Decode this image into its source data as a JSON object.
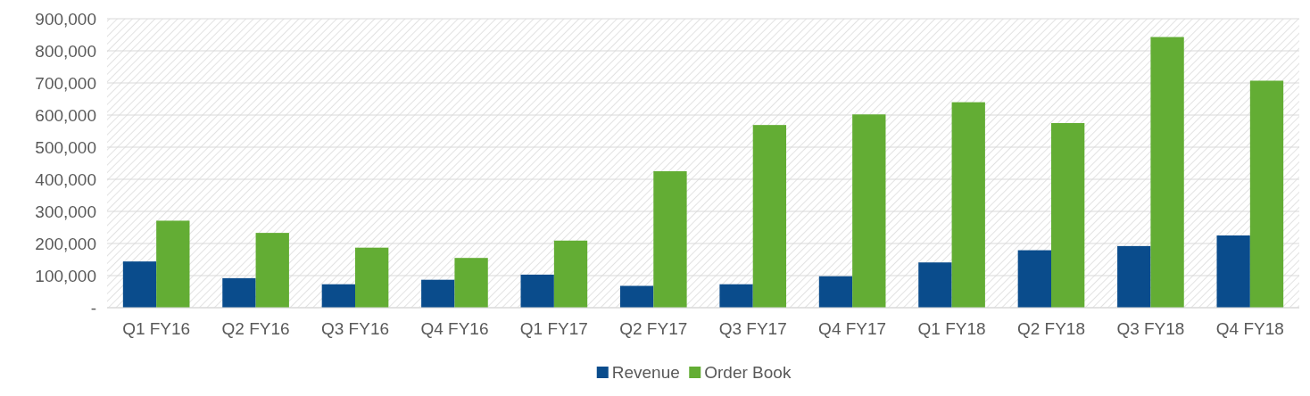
{
  "chart_data": {
    "type": "bar",
    "categories": [
      "Q1 FY16",
      "Q2 FY16",
      "Q3 FY16",
      "Q4 FY16",
      "Q1 FY17",
      "Q2 FY17",
      "Q3 FY17",
      "Q4 FY17",
      "Q1 FY18",
      "Q2 FY18",
      "Q3 FY18",
      "Q4 FY18"
    ],
    "series": [
      {
        "name": "Revenue",
        "color": "#0a4c8c",
        "values": [
          144000,
          92000,
          73000,
          87000,
          103000,
          68000,
          73000,
          98000,
          141000,
          179000,
          192000,
          225000
        ]
      },
      {
        "name": "Order Book",
        "color": "#63ad34",
        "values": [
          271000,
          233000,
          187000,
          155000,
          209000,
          425000,
          569000,
          602000,
          640000,
          575000,
          843000,
          707000
        ]
      }
    ],
    "ylim": [
      0,
      900000
    ],
    "yticks": [
      {
        "value": 0,
        "label": "-"
      },
      {
        "value": 100000,
        "label": "100,000"
      },
      {
        "value": 200000,
        "label": "200,000"
      },
      {
        "value": 300000,
        "label": "300,000"
      },
      {
        "value": 400000,
        "label": "400,000"
      },
      {
        "value": 500000,
        "label": "500,000"
      },
      {
        "value": 600000,
        "label": "600,000"
      },
      {
        "value": 700000,
        "label": "700,000"
      },
      {
        "value": 800000,
        "label": "800,000"
      },
      {
        "value": 900000,
        "label": "900,000"
      }
    ],
    "grid": true,
    "legend": "bottom"
  }
}
